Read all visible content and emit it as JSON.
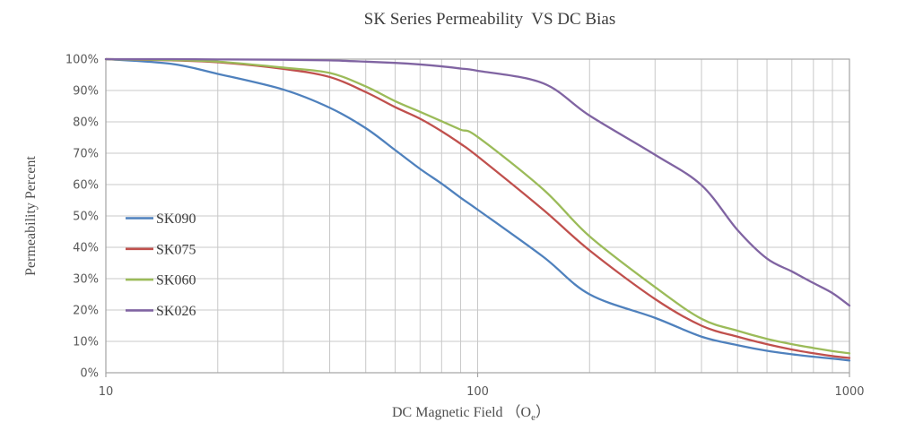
{
  "title": "SK Series Permeability  VS DC Bias",
  "axes": {
    "y_title": "Permeability Percent",
    "x_title_prefix": "DC Magnetic Field （O",
    "x_title_sub": "e",
    "x_title_suffix": "）"
  },
  "chart_data": {
    "type": "line",
    "x_scale": "log",
    "xlim": [
      10,
      1000
    ],
    "ylim": [
      0,
      100
    ],
    "grid": true,
    "legend_position": "inside-left",
    "x": [
      10,
      15,
      20,
      30,
      40,
      50,
      60,
      70,
      80,
      90,
      100,
      150,
      200,
      300,
      400,
      500,
      600,
      700,
      800,
      900,
      1000
    ],
    "series": [
      {
        "name": "SK090",
        "color": "#4F81BD",
        "values": [
          100,
          98.5,
          95.3,
          90.3,
          84.5,
          78.0,
          71.0,
          65.0,
          60.3,
          55.8,
          52.0,
          37.0,
          25.0,
          17.5,
          11.5,
          8.8,
          7.0,
          5.9,
          5.1,
          4.5,
          3.9
        ]
      },
      {
        "name": "SK075",
        "color": "#C0504D",
        "values": [
          100,
          99.6,
          99.0,
          96.9,
          94.3,
          89.5,
          84.7,
          81.0,
          77.0,
          73.0,
          69.0,
          52.0,
          39.0,
          23.5,
          15.0,
          11.5,
          9.1,
          7.4,
          6.2,
          5.3,
          4.7
        ]
      },
      {
        "name": "SK060",
        "color": "#9BBB59",
        "values": [
          100,
          99.7,
          99.2,
          97.3,
          95.6,
          91.3,
          86.6,
          83.2,
          80.2,
          77.5,
          75.2,
          58.5,
          43.5,
          27.3,
          17.2,
          13.4,
          10.8,
          9.1,
          7.9,
          6.9,
          6.2
        ]
      },
      {
        "name": "SK026",
        "color": "#8064A2",
        "values": [
          100,
          100,
          99.9,
          99.8,
          99.6,
          99.2,
          98.8,
          98.3,
          97.7,
          97.0,
          96.3,
          92.3,
          82.0,
          69.5,
          59.8,
          45.5,
          36.4,
          32.3,
          28.6,
          25.4,
          21.4
        ]
      }
    ],
    "x_ticks": [
      {
        "value": 10,
        "label": "10"
      },
      {
        "value": 100,
        "label": "100"
      },
      {
        "value": 1000,
        "label": "1000"
      }
    ],
    "y_ticks": [
      {
        "value": 0,
        "label": "0%"
      },
      {
        "value": 10,
        "label": "10%"
      },
      {
        "value": 20,
        "label": "20%"
      },
      {
        "value": 30,
        "label": "30%"
      },
      {
        "value": 40,
        "label": "40%"
      },
      {
        "value": 50,
        "label": "50%"
      },
      {
        "value": 60,
        "label": "60%"
      },
      {
        "value": 70,
        "label": "70%"
      },
      {
        "value": 80,
        "label": "80%"
      },
      {
        "value": 90,
        "label": "90%"
      },
      {
        "value": 100,
        "label": "100%"
      }
    ],
    "minor_x_gridlines": [
      20,
      30,
      40,
      50,
      60,
      70,
      80,
      90,
      200,
      300,
      400,
      500,
      600,
      700,
      800,
      900
    ],
    "colors": {
      "gridline": "#c8c8c8",
      "border": "#a3a3a3",
      "tick_text": "#595959"
    }
  }
}
